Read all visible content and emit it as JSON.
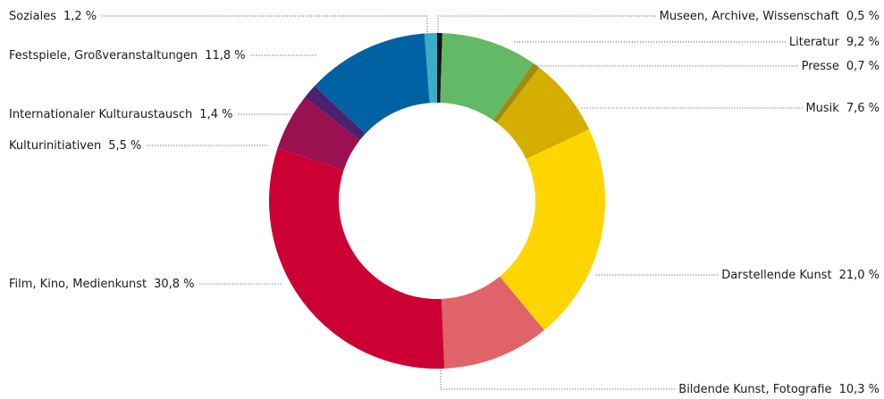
{
  "chart_data": {
    "type": "donut",
    "categories": [
      "Museen, Archive, Wissenschaft",
      "Literatur",
      "Presse",
      "Musik",
      "Darstellende Kunst",
      "Bildende Kunst, Fotografie",
      "Film, Kino, Medienkunst",
      "Kulturinitiativen",
      "Internationaler Kulturaustausch",
      "Festspiele, Großveranstaltungen",
      "Soziales"
    ],
    "values": [
      0.5,
      9.2,
      0.7,
      7.6,
      21.0,
      10.3,
      30.8,
      5.5,
      1.4,
      11.8,
      1.2
    ],
    "value_labels": [
      "0,5 %",
      "9,2 %",
      "0,7 %",
      "7,6 %",
      "21,0 %",
      "10,3 %",
      "30,8 %",
      "5,5 %",
      "1,4 %",
      "11,8 %",
      "1,2 %"
    ],
    "colors": [
      "#111111",
      "#62b966",
      "#a08a10",
      "#d4ae00",
      "#ffd500",
      "#e0636a",
      "#cc0033",
      "#9b1050",
      "#4a2070",
      "#0062a3",
      "#3aaec8"
    ]
  }
}
